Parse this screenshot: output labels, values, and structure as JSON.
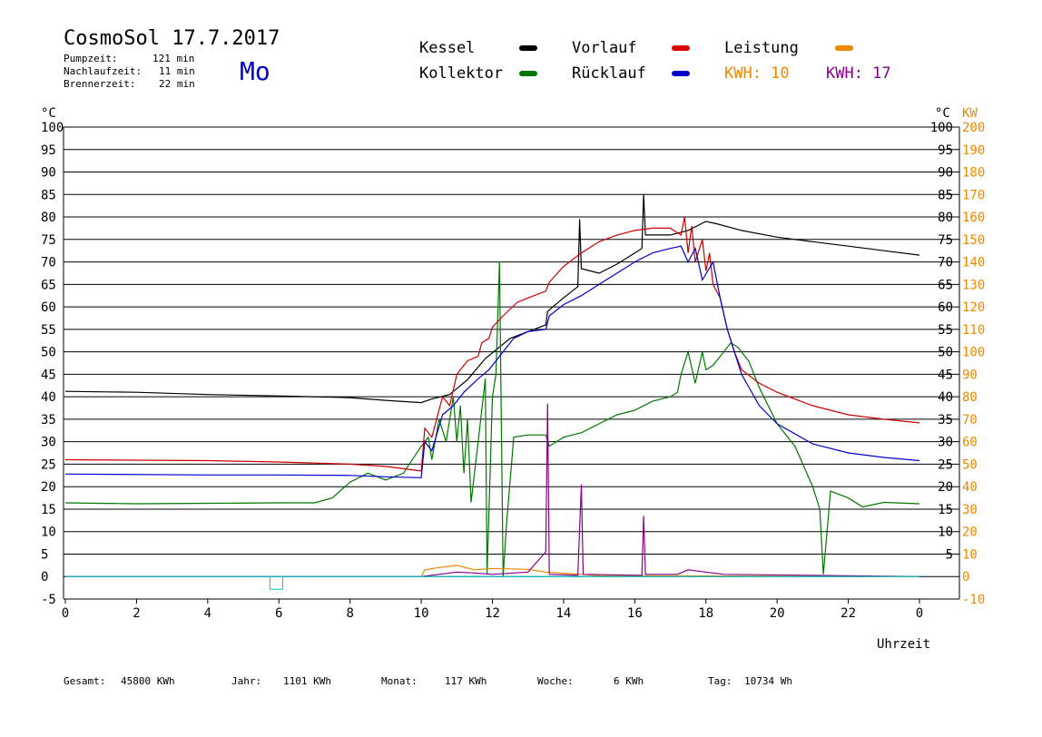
{
  "header": {
    "title": "CosmoSol 17.7.2017",
    "day": "Mo",
    "stats": [
      {
        "label": "Pumpzeit:",
        "value": "121 min"
      },
      {
        "label": "Nachlaufzeit:",
        "value": "11 min"
      },
      {
        "label": "Brennerzeit:",
        "value": "22 min"
      }
    ]
  },
  "legend": {
    "kessel": "Kessel",
    "kollektor": "Kollektor",
    "vorlauf": "Vorlauf",
    "ruecklauf": "Rücklauf",
    "leistung": "Leistung",
    "kwh1": "KWH: 10",
    "kwh2": "KWH: 17"
  },
  "footer": {
    "gesamt_label": "Gesamt:",
    "gesamt_value": "45800 KWh",
    "jahr_label": "Jahr:",
    "jahr_value": "1101 KWh",
    "monat_label": "Monat:",
    "monat_value": "117 KWh",
    "woche_label": "Woche:",
    "woche_value": "6 KWh",
    "tag_label": "Tag:",
    "tag_value": "10734 Wh"
  },
  "colors": {
    "kessel": "#000000",
    "kollektor": "#007700",
    "vorlauf": "#cc0000",
    "ruecklauf": "#0000cc",
    "leistung": "#ee8800",
    "kwh2": "#880088",
    "baseline": "#00cccc"
  },
  "chart_data": {
    "type": "line",
    "xlabel": "Uhrzeit",
    "ylabel_left": "°C",
    "ylabel_right_c": "°C",
    "ylabel_right_kw": "KW",
    "xlim": [
      0,
      24
    ],
    "ylim": [
      -5,
      100
    ],
    "y2lim": [
      -10,
      200
    ],
    "x_ticks": [
      "0",
      "2",
      "4",
      "6",
      "8",
      "10",
      "12",
      "14",
      "16",
      "18",
      "20",
      "22",
      "0"
    ],
    "y_ticks_left": [
      -5,
      0,
      5,
      10,
      15,
      20,
      25,
      30,
      35,
      40,
      45,
      50,
      55,
      60,
      65,
      70,
      75,
      80,
      85,
      90,
      95,
      100
    ],
    "y_ticks_right_c": [
      5,
      10,
      15,
      20,
      25,
      30,
      35,
      40,
      45,
      50,
      55,
      60,
      65,
      70,
      75,
      80,
      85,
      90,
      95,
      100
    ],
    "y_ticks_right_kw": [
      -10,
      0,
      10,
      20,
      30,
      40,
      50,
      60,
      70,
      80,
      90,
      100,
      110,
      120,
      130,
      140,
      150,
      160,
      170,
      180,
      190,
      200
    ],
    "grid": true,
    "series": [
      {
        "name": "Kessel",
        "color": "#000000",
        "points": [
          [
            0,
            41.2
          ],
          [
            2,
            41
          ],
          [
            4,
            40.5
          ],
          [
            6,
            40.2
          ],
          [
            8,
            39.8
          ],
          [
            9,
            39.2
          ],
          [
            10,
            38.7
          ],
          [
            10.3,
            39.5
          ],
          [
            10.8,
            40.5
          ],
          [
            11.3,
            43.8
          ],
          [
            11.8,
            48.5
          ],
          [
            12.5,
            53
          ],
          [
            13.5,
            56
          ],
          [
            13.55,
            59
          ],
          [
            14,
            62
          ],
          [
            14.4,
            64.5
          ],
          [
            14.45,
            79.5
          ],
          [
            14.5,
            68.5
          ],
          [
            15,
            67.5
          ],
          [
            15.5,
            69.5
          ],
          [
            16,
            72
          ],
          [
            16.2,
            73
          ],
          [
            16.25,
            85
          ],
          [
            16.3,
            76
          ],
          [
            17,
            76
          ],
          [
            17.5,
            77
          ],
          [
            18,
            79
          ],
          [
            18.3,
            78.5
          ],
          [
            19,
            77
          ],
          [
            20,
            75.5
          ],
          [
            21,
            74.5
          ],
          [
            22,
            73.5
          ],
          [
            23,
            72.5
          ],
          [
            24,
            71.5
          ]
        ]
      },
      {
        "name": "Kollektor",
        "color": "#007700",
        "points": [
          [
            0,
            16.4
          ],
          [
            2,
            16.2
          ],
          [
            4,
            16.3
          ],
          [
            6,
            16.4
          ],
          [
            7,
            16.4
          ],
          [
            7.5,
            17.5
          ],
          [
            8,
            21
          ],
          [
            8.5,
            23
          ],
          [
            9,
            21.5
          ],
          [
            9.5,
            23
          ],
          [
            10,
            29
          ],
          [
            10.2,
            31
          ],
          [
            10.3,
            26
          ],
          [
            10.5,
            35
          ],
          [
            10.7,
            30
          ],
          [
            10.9,
            40
          ],
          [
            11,
            30
          ],
          [
            11.1,
            38
          ],
          [
            11.2,
            23
          ],
          [
            11.3,
            35
          ],
          [
            11.4,
            16.5
          ],
          [
            11.6,
            30
          ],
          [
            11.8,
            44
          ],
          [
            11.85,
            0.5
          ],
          [
            12,
            40
          ],
          [
            12.1,
            45
          ],
          [
            12.2,
            70
          ],
          [
            12.3,
            0
          ],
          [
            12.4,
            12
          ],
          [
            12.6,
            31
          ],
          [
            13,
            31.5
          ],
          [
            13.5,
            31.5
          ],
          [
            13.6,
            29
          ],
          [
            14,
            31
          ],
          [
            14.5,
            32
          ],
          [
            15,
            34
          ],
          [
            15.5,
            36
          ],
          [
            16,
            37
          ],
          [
            16.5,
            39
          ],
          [
            17,
            40
          ],
          [
            17.2,
            41
          ],
          [
            17.3,
            45
          ],
          [
            17.5,
            50
          ],
          [
            17.7,
            43
          ],
          [
            17.9,
            50
          ],
          [
            18,
            46
          ],
          [
            18.2,
            47
          ],
          [
            18.5,
            50
          ],
          [
            18.7,
            52
          ],
          [
            18.9,
            51
          ],
          [
            19.2,
            48
          ],
          [
            19.5,
            42
          ],
          [
            20,
            34
          ],
          [
            20.5,
            29
          ],
          [
            21,
            20
          ],
          [
            21.2,
            15
          ],
          [
            21.3,
            0.5
          ],
          [
            21.5,
            19
          ],
          [
            22,
            17.5
          ],
          [
            22.4,
            15.5
          ],
          [
            23,
            16.5
          ],
          [
            24,
            16.2
          ]
        ]
      },
      {
        "name": "Vorlauf",
        "color": "#cc0000",
        "points": [
          [
            0,
            26
          ],
          [
            4,
            25.8
          ],
          [
            6,
            25.5
          ],
          [
            8,
            25
          ],
          [
            9,
            24.5
          ],
          [
            10,
            23.5
          ],
          [
            10.1,
            33
          ],
          [
            10.3,
            31
          ],
          [
            10.6,
            40
          ],
          [
            10.8,
            38
          ],
          [
            11,
            45
          ],
          [
            11.3,
            48
          ],
          [
            11.6,
            49
          ],
          [
            11.7,
            52
          ],
          [
            11.9,
            53
          ],
          [
            12,
            55.5
          ],
          [
            12.3,
            58
          ],
          [
            12.7,
            61
          ],
          [
            13,
            62
          ],
          [
            13.5,
            63.5
          ],
          [
            13.6,
            65.5
          ],
          [
            14,
            69
          ],
          [
            14.5,
            72
          ],
          [
            15,
            74.5
          ],
          [
            15.5,
            76
          ],
          [
            16,
            77
          ],
          [
            16.5,
            77.5
          ],
          [
            17,
            77.5
          ],
          [
            17.3,
            76
          ],
          [
            17.4,
            80
          ],
          [
            17.5,
            72
          ],
          [
            17.6,
            78
          ],
          [
            17.7,
            70
          ],
          [
            17.9,
            75
          ],
          [
            18,
            68
          ],
          [
            18.1,
            72
          ],
          [
            18.2,
            65
          ],
          [
            18.4,
            62
          ],
          [
            18.6,
            55
          ],
          [
            18.8,
            50
          ],
          [
            19,
            46
          ],
          [
            19.5,
            43
          ],
          [
            20,
            41
          ],
          [
            21,
            38
          ],
          [
            22,
            36
          ],
          [
            23,
            35
          ],
          [
            24,
            34.2
          ]
        ]
      },
      {
        "name": "Rücklauf",
        "color": "#0000cc",
        "points": [
          [
            0,
            22.8
          ],
          [
            4,
            22.6
          ],
          [
            6,
            22.6
          ],
          [
            8,
            22.5
          ],
          [
            9,
            22.2
          ],
          [
            10,
            22
          ],
          [
            10.1,
            30
          ],
          [
            10.3,
            28
          ],
          [
            10.6,
            36
          ],
          [
            10.9,
            38
          ],
          [
            11.2,
            41
          ],
          [
            11.6,
            44
          ],
          [
            11.9,
            46
          ],
          [
            12.2,
            49
          ],
          [
            12.6,
            53
          ],
          [
            13,
            54.5
          ],
          [
            13.5,
            55
          ],
          [
            13.6,
            58
          ],
          [
            14,
            60.5
          ],
          [
            14.5,
            62.5
          ],
          [
            15,
            65
          ],
          [
            15.5,
            67.5
          ],
          [
            16,
            70
          ],
          [
            16.5,
            72
          ],
          [
            17,
            73
          ],
          [
            17.3,
            73.5
          ],
          [
            17.5,
            70
          ],
          [
            17.7,
            73
          ],
          [
            17.9,
            66
          ],
          [
            18.2,
            70
          ],
          [
            18.4,
            62
          ],
          [
            18.6,
            55
          ],
          [
            18.8,
            50
          ],
          [
            19,
            45
          ],
          [
            19.5,
            38
          ],
          [
            20,
            34
          ],
          [
            21,
            29.5
          ],
          [
            22,
            27.5
          ],
          [
            23,
            26.5
          ],
          [
            24,
            25.8
          ]
        ]
      },
      {
        "name": "Leistung",
        "color": "#ee8800",
        "points": [
          [
            0,
            0
          ],
          [
            10,
            0
          ],
          [
            10.1,
            1.5
          ],
          [
            10.5,
            2
          ],
          [
            11,
            2.5
          ],
          [
            11.5,
            1.5
          ],
          [
            12,
            1.8
          ],
          [
            13,
            1.6
          ],
          [
            13.5,
            1
          ],
          [
            14.5,
            0.5
          ],
          [
            15,
            0.2
          ],
          [
            24,
            0
          ]
        ]
      },
      {
        "name": "KWH 17",
        "color": "#880088",
        "points": [
          [
            0,
            0
          ],
          [
            10,
            0
          ],
          [
            10.5,
            0.5
          ],
          [
            11,
            1
          ],
          [
            11.5,
            0.8
          ],
          [
            12,
            0.5
          ],
          [
            13,
            1
          ],
          [
            13.5,
            5.5
          ],
          [
            13.55,
            38.5
          ],
          [
            13.6,
            0.5
          ],
          [
            14.4,
            0.3
          ],
          [
            14.5,
            20.5
          ],
          [
            14.55,
            0.5
          ],
          [
            16.2,
            0.3
          ],
          [
            16.25,
            13.5
          ],
          [
            16.3,
            0.5
          ],
          [
            17.2,
            0.5
          ],
          [
            17.5,
            1.5
          ],
          [
            18,
            1
          ],
          [
            18.5,
            0.5
          ],
          [
            24,
            0
          ]
        ]
      },
      {
        "name": "Baseline",
        "color": "#00cccc",
        "points": [
          [
            0,
            0
          ],
          [
            24,
            0
          ]
        ]
      }
    ],
    "annotations": [
      "Uhrzeit"
    ]
  }
}
